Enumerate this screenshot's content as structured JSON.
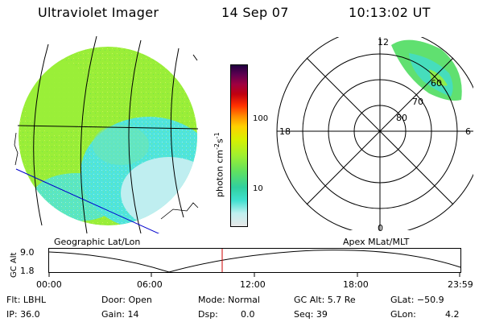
{
  "header": {
    "instrument": "Ultraviolet Imager",
    "date": "14 Sep 07",
    "time": "10:13:02 UT"
  },
  "colorbar": {
    "unit_label": "photon cm",
    "unit_exp1": "-2",
    "unit_mid": "s",
    "unit_exp2": "-1",
    "tick_100": "100",
    "tick_10": "10",
    "stops": [
      "#e8e8e8",
      "#c0f0f0",
      "#40e0d0",
      "#30d0a0",
      "#60e060",
      "#a0f030",
      "#d8f000",
      "#ffd000",
      "#ff9000",
      "#ff3000",
      "#c00010",
      "#a00040",
      "#600050",
      "#200040"
    ]
  },
  "left_panel": {
    "label": "Geographic Lat/Lon",
    "colors": {
      "aurora": "#9aee38",
      "cyan": "#4fe4dc",
      "pale": "#bfeef0",
      "grid": "#000000",
      "track": "#0000cc"
    }
  },
  "right_panel": {
    "label": "Apex MLat/MLT",
    "mlt_12": "12",
    "mlt_18": "18",
    "mlt_6": "6",
    "mlt_0": "0",
    "lat_80": "80",
    "lat_70": "70",
    "lat_60": "60"
  },
  "altitude_plot": {
    "ylabel": "GC Alt",
    "ytick_top": "9.0",
    "ytick_bottom": "1.8",
    "xticks": [
      "00:00",
      "06:00",
      "12:00",
      "18:00",
      "23:59"
    ],
    "marker_color": "#cc0000"
  },
  "footer": {
    "flt": "Flt: LBHL",
    "ip": "IP: 36.0",
    "door": "Door: Open",
    "gain": "Gain: 14",
    "mode": "Mode: Normal",
    "dsp": "Dsp:",
    "dsp_value": "0.0",
    "gcalt": "GC Alt: 5.7 Re",
    "seq": "Seq: 39",
    "glat": "GLat: −50.9",
    "glon_label": "GLon:",
    "glon_value": "4.2"
  }
}
